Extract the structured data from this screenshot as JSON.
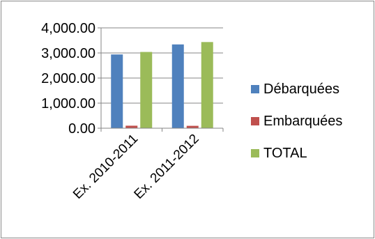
{
  "chart_data": {
    "type": "bar",
    "title": "",
    "xlabel": "",
    "ylabel": "",
    "categories": [
      "Ex. 2010-2011",
      "Ex. 2011-2012"
    ],
    "series": [
      {
        "name": "Débarquées",
        "values": [
          2940,
          3340
        ],
        "color": "#4f81bd"
      },
      {
        "name": "Embarquées",
        "values": [
          100,
          95
        ],
        "color": "#c0504d"
      },
      {
        "name": "TOTAL",
        "values": [
          3040,
          3435
        ],
        "color": "#9bbb59"
      }
    ],
    "ylim": [
      0,
      4000
    ],
    "yticks": [
      0,
      1000,
      2000,
      3000,
      4000
    ],
    "ytick_labels": [
      "0.00",
      "1,000.00",
      "2,000.00",
      "3,000.00",
      "4,000.00"
    ],
    "grid": true,
    "legend_position": "right"
  }
}
